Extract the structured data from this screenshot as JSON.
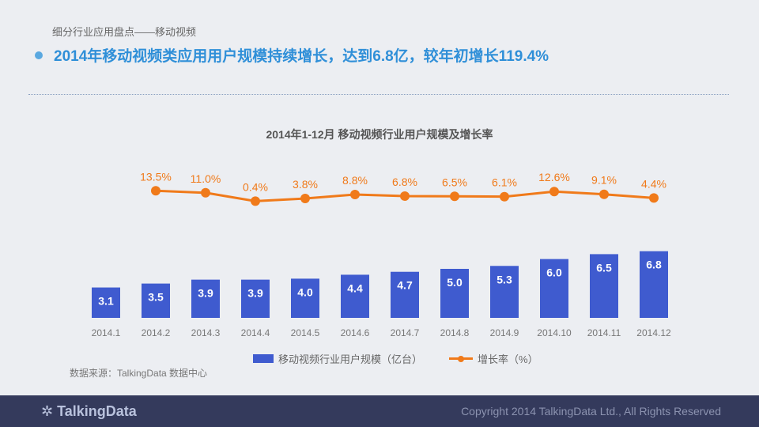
{
  "header": {
    "subtitle": "细分行业应用盘点——移动视频",
    "headline": "2014年移动视频类应用用户规模持续增长，达到6.8亿，较年初增长119.4%"
  },
  "chart_data": {
    "type": "bar+line",
    "title": "2014年1-12月 移动视频行业用户规模及增长率",
    "categories": [
      "2014.1",
      "2014.2",
      "2014.3",
      "2014.4",
      "2014.5",
      "2014.6",
      "2014.7",
      "2014.8",
      "2014.9",
      "2014.10",
      "2014.11",
      "2014.12"
    ],
    "series": [
      {
        "name": "移动视频行业用户规模（亿台）",
        "type": "bar",
        "color": "#3f5bcf",
        "values": [
          3.1,
          3.5,
          3.9,
          3.9,
          4.0,
          4.4,
          4.7,
          5.0,
          5.3,
          6.0,
          6.5,
          6.8
        ]
      },
      {
        "name": "增长率（%）",
        "type": "line",
        "color": "#f07a1a",
        "values": [
          null,
          13.5,
          11.0,
          0.4,
          3.8,
          8.8,
          6.8,
          6.5,
          6.1,
          12.6,
          9.1,
          4.4
        ]
      }
    ],
    "legend_position": "bottom"
  },
  "source": "数据来源：TalkingData 数据中心",
  "footer": {
    "logo": "TalkingData",
    "copyright": "Copyright 2014 TalkingData Ltd., All Rights Reserved"
  }
}
